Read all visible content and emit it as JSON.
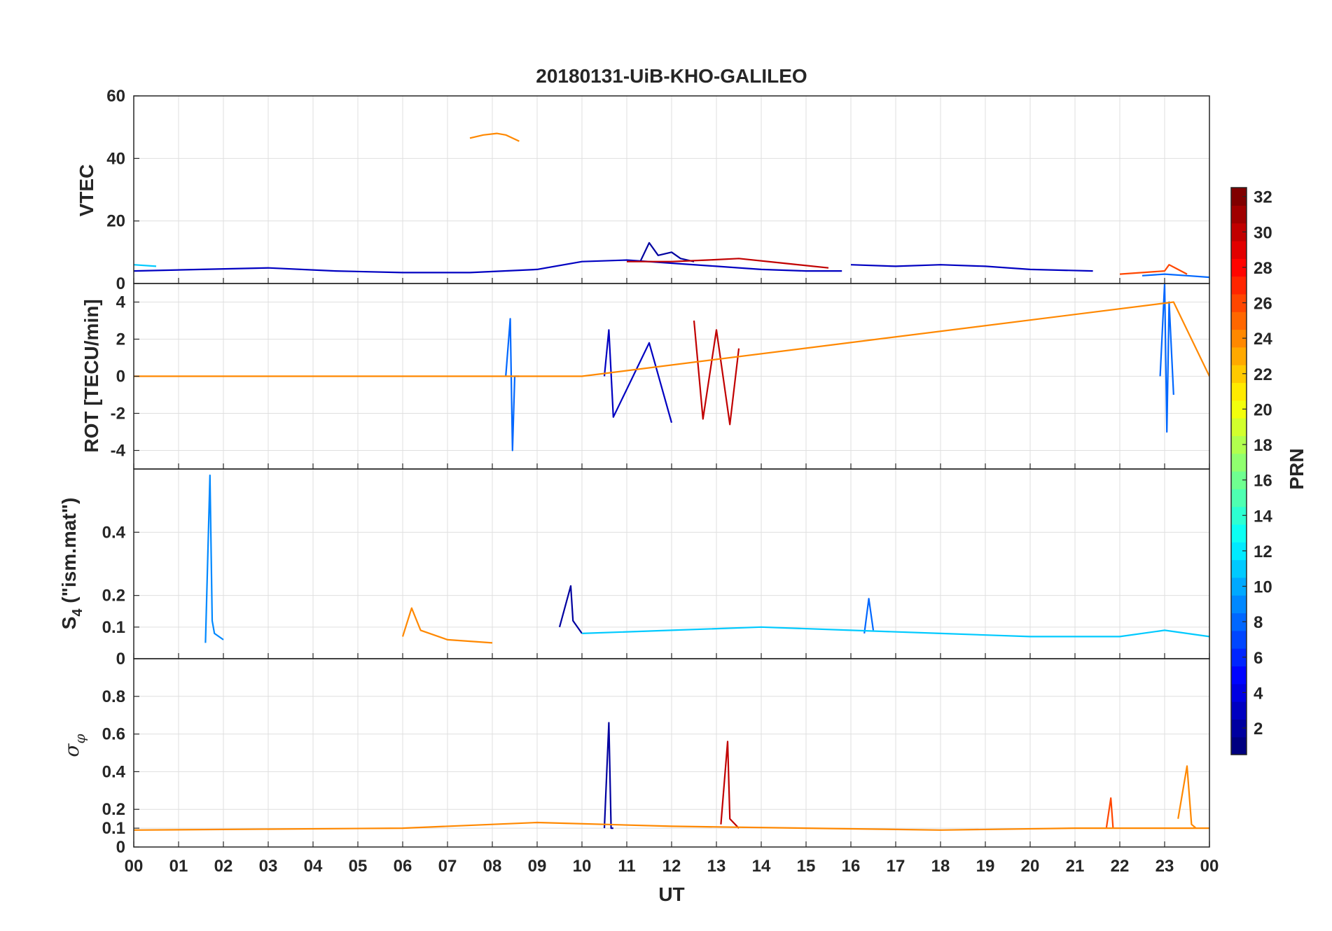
{
  "chart_data": {
    "type": "line",
    "title": "20180131-UiB-KHO-GALILEO",
    "xlabel": "UT",
    "x_tick_labels": [
      "00",
      "01",
      "02",
      "03",
      "04",
      "05",
      "06",
      "07",
      "08",
      "09",
      "10",
      "11",
      "12",
      "13",
      "14",
      "15",
      "16",
      "17",
      "18",
      "19",
      "20",
      "21",
      "22",
      "23",
      "00"
    ],
    "xlim_hours": [
      0,
      24
    ],
    "grid": true,
    "colormap": "jet",
    "colorbar": {
      "label": "PRN",
      "range": [
        1,
        32
      ],
      "tick_labels": [
        "2",
        "4",
        "6",
        "8",
        "10",
        "12",
        "14",
        "16",
        "18",
        "20",
        "22",
        "24",
        "26",
        "28",
        "30",
        "32"
      ]
    },
    "panels": [
      {
        "ylabel": "VTEC",
        "ylim": [
          0,
          60
        ],
        "y_tick_labels": [
          "0",
          "20",
          "40",
          "60"
        ],
        "series": [
          {
            "prn": 24,
            "x": [
              7.5,
              7.8,
              8.1,
              8.3,
              8.6
            ],
            "y": [
              46.5,
              47.5,
              48,
              47.5,
              45.5
            ]
          },
          {
            "prn": 3,
            "x": [
              0,
              1.5,
              3,
              4.5,
              6,
              7.5,
              9,
              10,
              11,
              12,
              13,
              14,
              15,
              15.8
            ],
            "y": [
              4,
              4.5,
              5,
              4,
              3.5,
              3.5,
              4.5,
              7,
              7.5,
              6.5,
              5.5,
              4.5,
              4,
              4
            ]
          },
          {
            "prn": 2,
            "x": [
              11.3,
              11.5,
              11.7,
              12,
              12.2,
              12.5
            ],
            "y": [
              7,
              13,
              9,
              10,
              8,
              7
            ]
          },
          {
            "prn": 30,
            "x": [
              11,
              12,
              12.8,
              13.5,
              14.5,
              15.5
            ],
            "y": [
              7,
              7,
              7.5,
              8,
              6.5,
              5
            ]
          },
          {
            "prn": 3,
            "x": [
              16,
              17,
              18,
              19,
              20,
              21.4
            ],
            "y": [
              6,
              5.5,
              6,
              5.5,
              4.5,
              4
            ]
          },
          {
            "prn": 11,
            "x": [
              0,
              0.5
            ],
            "y": [
              6,
              5.5
            ]
          },
          {
            "prn": 8,
            "x": [
              22.5,
              23,
              23.5,
              24
            ],
            "y": [
              2.5,
              3,
              2.5,
              2
            ]
          },
          {
            "prn": 26,
            "x": [
              22,
              23,
              23.1,
              23.5
            ],
            "y": [
              3,
              4,
              6,
              3
            ]
          }
        ]
      },
      {
        "ylabel": "ROT [TECU/min]",
        "ylim": [
          -5,
          5
        ],
        "y_tick_labels": [
          "-4",
          "-2",
          "0",
          "2",
          "4"
        ],
        "series": [
          {
            "prn": 8,
            "x": [
              8.3,
              8.4,
              8.45,
              8.5,
              8.6
            ],
            "y": [
              0,
              3.1,
              -4,
              0,
              0
            ]
          },
          {
            "prn": 3,
            "x": [
              10.5,
              10.6,
              10.7,
              11.5,
              12
            ],
            "y": [
              0,
              2.5,
              -2.2,
              1.8,
              -2.5
            ]
          },
          {
            "prn": 30,
            "x": [
              12.5,
              12.7,
              13,
              13.3,
              13.5
            ],
            "y": [
              3,
              -2.3,
              2.5,
              -2.6,
              1.5
            ]
          },
          {
            "prn": 8,
            "x": [
              22.9,
              23,
              23.05,
              23.1,
              23.2
            ],
            "y": [
              0,
              5,
              -3,
              4,
              -1
            ]
          },
          {
            "prn": 24,
            "x": [
              0,
              6,
              8,
              10,
              23.2,
              24
            ],
            "y": [
              0,
              0,
              0,
              0,
              4,
              0
            ]
          }
        ]
      },
      {
        "ylabel_prefix": "S",
        "ylabel_sub": "4",
        "ylabel_suffix": " (\"ism.mat\")",
        "ylim": [
          0,
          0.6
        ],
        "y_tick_labels": [
          "0",
          "0.1",
          "0.2",
          "0.4"
        ],
        "series": [
          {
            "prn": 9,
            "x": [
              1.6,
              1.7,
              1.75,
              1.8,
              2
            ],
            "y": [
              0.05,
              0.58,
              0.12,
              0.08,
              0.06
            ]
          },
          {
            "prn": 2,
            "x": [
              9.5,
              9.75,
              9.8,
              10
            ],
            "y": [
              0.1,
              0.23,
              0.12,
              0.08
            ]
          },
          {
            "prn": 24,
            "x": [
              6,
              6.2,
              6.4,
              7,
              8
            ],
            "y": [
              0.07,
              0.16,
              0.09,
              0.06,
              0.05
            ]
          },
          {
            "prn": 8,
            "x": [
              16.3,
              16.4,
              16.5
            ],
            "y": [
              0.08,
              0.19,
              0.09
            ]
          },
          {
            "prn": 11,
            "x": [
              10,
              12,
              14,
              16,
              18,
              20,
              22,
              23,
              24
            ],
            "y": [
              0.08,
              0.09,
              0.1,
              0.09,
              0.08,
              0.07,
              0.07,
              0.09,
              0.07
            ]
          }
        ]
      },
      {
        "ylabel": "σ",
        "ylabel_sub": "φ",
        "ylim": [
          0,
          1
        ],
        "y_tick_labels": [
          "0",
          "0.1",
          "0.2",
          "0.4",
          "0.6",
          "0.8"
        ],
        "series": [
          {
            "prn": 2,
            "x": [
              10.5,
              10.6,
              10.65,
              10.7
            ],
            "y": [
              0.1,
              0.66,
              0.1,
              0.1
            ]
          },
          {
            "prn": 30,
            "x": [
              13.1,
              13.25,
              13.3,
              13.5
            ],
            "y": [
              0.12,
              0.56,
              0.15,
              0.1
            ]
          },
          {
            "prn": 24,
            "x": [
              23.3,
              23.5,
              23.6,
              23.7
            ],
            "y": [
              0.15,
              0.43,
              0.12,
              0.1
            ]
          },
          {
            "prn": 26,
            "x": [
              21.7,
              21.8,
              21.85
            ],
            "y": [
              0.1,
              0.26,
              0.1
            ]
          },
          {
            "prn": 24,
            "x": [
              0,
              6,
              9,
              12,
              15,
              18,
              21,
              24
            ],
            "y": [
              0.09,
              0.1,
              0.13,
              0.11,
              0.1,
              0.09,
              0.1,
              0.1
            ]
          }
        ]
      }
    ]
  }
}
